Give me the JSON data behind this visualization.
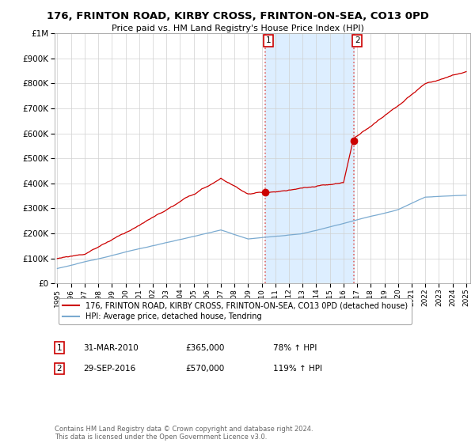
{
  "title": "176, FRINTON ROAD, KIRBY CROSS, FRINTON-ON-SEA, CO13 0PD",
  "subtitle": "Price paid vs. HM Land Registry's House Price Index (HPI)",
  "legend_line1": "176, FRINTON ROAD, KIRBY CROSS, FRINTON-ON-SEA, CO13 0PD (detached house)",
  "legend_line2": "HPI: Average price, detached house, Tendring",
  "sale1_date": "31-MAR-2010",
  "sale1_price": "£365,000",
  "sale1_hpi": "78% ↑ HPI",
  "sale2_date": "29-SEP-2016",
  "sale2_price": "£570,000",
  "sale2_hpi": "119% ↑ HPI",
  "footer": "Contains HM Land Registry data © Crown copyright and database right 2024.\nThis data is licensed under the Open Government Licence v3.0.",
  "sale1_year": 2010.25,
  "sale2_year": 2016.75,
  "sale1_value": 365000,
  "sale2_value": 570000,
  "red_color": "#cc0000",
  "blue_color": "#7aaad0",
  "shade_color": "#ddeeff",
  "dot_color": "#cc4444",
  "ylim": [
    0,
    1000000
  ],
  "xlim_start": 1994.8,
  "xlim_end": 2025.3
}
